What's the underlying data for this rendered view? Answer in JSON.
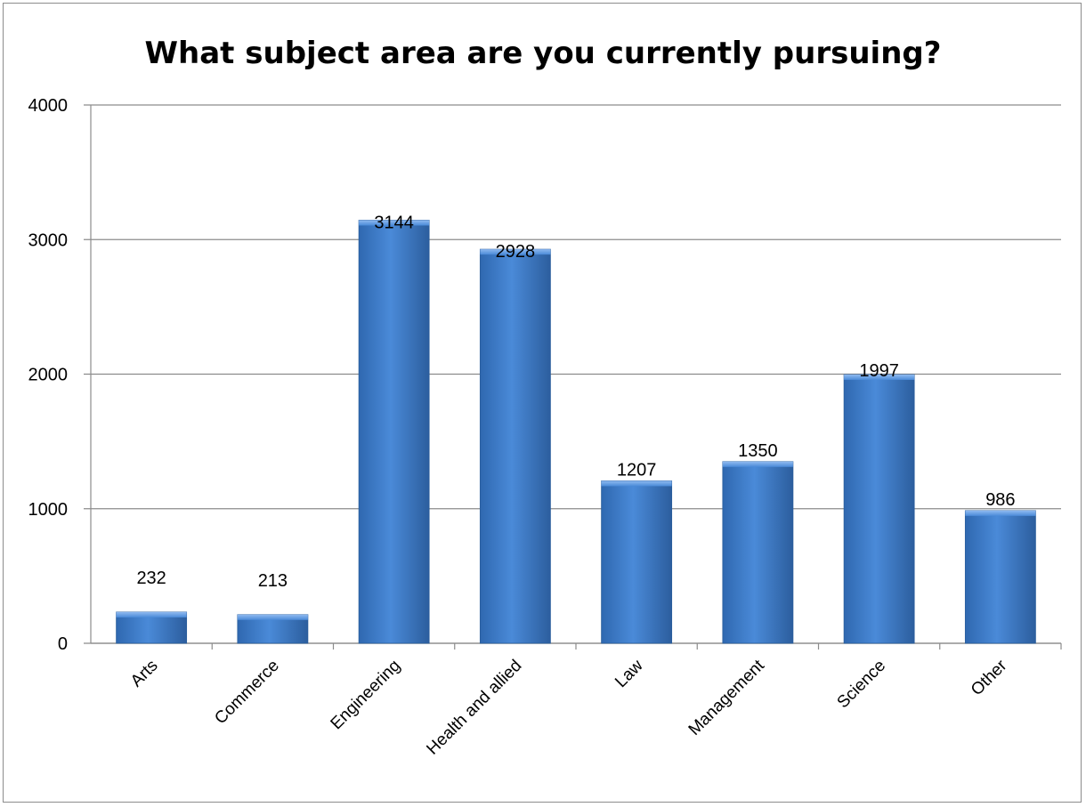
{
  "chart_data": {
    "type": "bar",
    "title": "What subject area are you currently pursuing?",
    "categories": [
      "Arts",
      "Commerce",
      "Engineering",
      "Health and allied",
      "Law",
      "Management",
      "Science",
      "Other"
    ],
    "series": [
      {
        "values": [
          232,
          213,
          3144,
          2928,
          1207,
          1350,
          1997,
          986
        ]
      }
    ],
    "yticks": [
      "0",
      "1000",
      "2000",
      "3000",
      "4000"
    ],
    "ylim": [
      0,
      4000
    ],
    "grid": true,
    "legend": "none",
    "colors": {
      "bar": "#3f7fcf",
      "bar_dark": "#2a5e9c",
      "bar_light": "#6aa3e6"
    }
  }
}
